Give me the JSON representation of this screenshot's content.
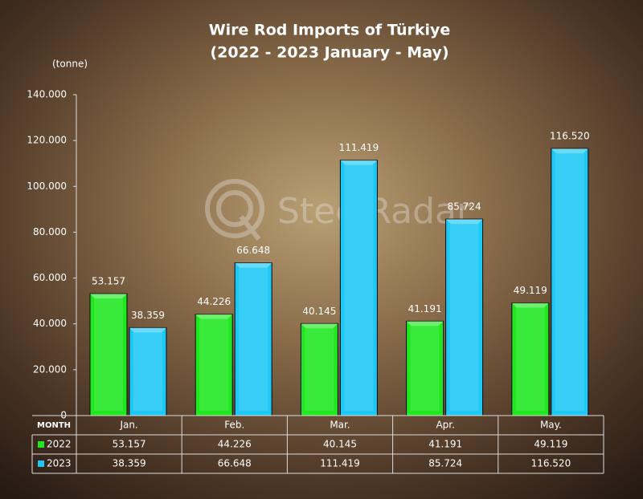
{
  "chart_data": {
    "type": "bar",
    "title": [
      "Wire Rod Imports of Türkiye",
      "(2022 - 2023 January - May)"
    ],
    "y_unit": "(tonne)",
    "watermark": "SteelRadar",
    "table_header": "MONTH",
    "categories": [
      "Jan.",
      "Feb.",
      "Mar.",
      "Apr.",
      "May."
    ],
    "series": [
      {
        "name": "2022",
        "color": "#1fe81f",
        "values": [
          53157,
          44226,
          40145,
          41191,
          49119
        ],
        "value_labels": [
          "53.157",
          "44.226",
          "40.145",
          "41.191",
          "49.119"
        ]
      },
      {
        "name": "2023",
        "color": "#1ec8f5",
        "values": [
          38359,
          66648,
          111419,
          85724,
          116520
        ],
        "value_labels": [
          "38.359",
          "66.648",
          "111.419",
          "85.724",
          "116.520"
        ]
      }
    ],
    "ylim": [
      0,
      140000
    ],
    "yticks": [
      0,
      {
        "value": 20000,
        "label": "20.000"
      },
      {
        "value": 40000,
        "label": "40.000"
      },
      {
        "value": 60000,
        "label": "60.000"
      },
      {
        "value": 80000,
        "label": "80.000"
      },
      {
        "value": 100000,
        "label": "100.000"
      },
      {
        "value": 120000,
        "label": "120.000"
      },
      {
        "value": 140000,
        "label": "140.000"
      }
    ],
    "grid": false
  }
}
